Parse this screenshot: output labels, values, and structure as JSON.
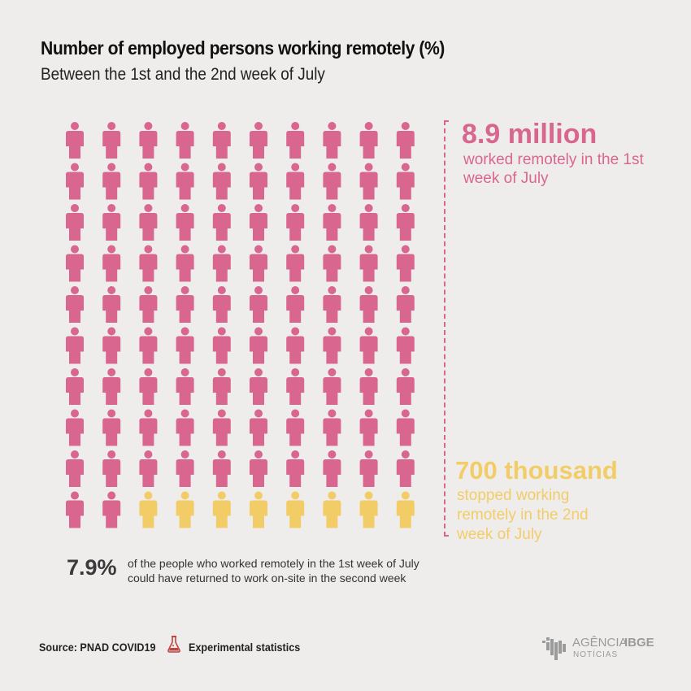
{
  "header": {
    "title": "Number of employed persons working remotely (%)",
    "subtitle": "Between the 1st and the 2nd week of July"
  },
  "chart_data": {
    "type": "waffle",
    "rows": 10,
    "cols": 10,
    "series": [
      {
        "name": "worked remotely in the 1st week of July",
        "count": 92,
        "color": "#d9668f"
      },
      {
        "name": "stopped working remotely in the 2nd week of July",
        "count": 8,
        "color": "#f2cd67"
      }
    ],
    "annotations": {
      "top_value": "8.9 million",
      "top_text": "worked remotely in the 1st week of July",
      "bottom_value": "700 thousand",
      "bottom_text": "stopped working remotely in the 2nd week of July"
    }
  },
  "summary": {
    "value": "7.9%",
    "text": "of the people who worked remotely in the 1st week of July could have returned to work on-site in the second week"
  },
  "footer": {
    "source": "Source: PNAD COVID19",
    "experimental": "Experimental statistics",
    "logo_agencia": "AGÊNCIA",
    "logo_ibge": "IBGE",
    "logo_noticias": "NOTÍCIAS",
    "flask_icon": "flask-icon",
    "logo_icon": "ibge-logo-icon"
  }
}
